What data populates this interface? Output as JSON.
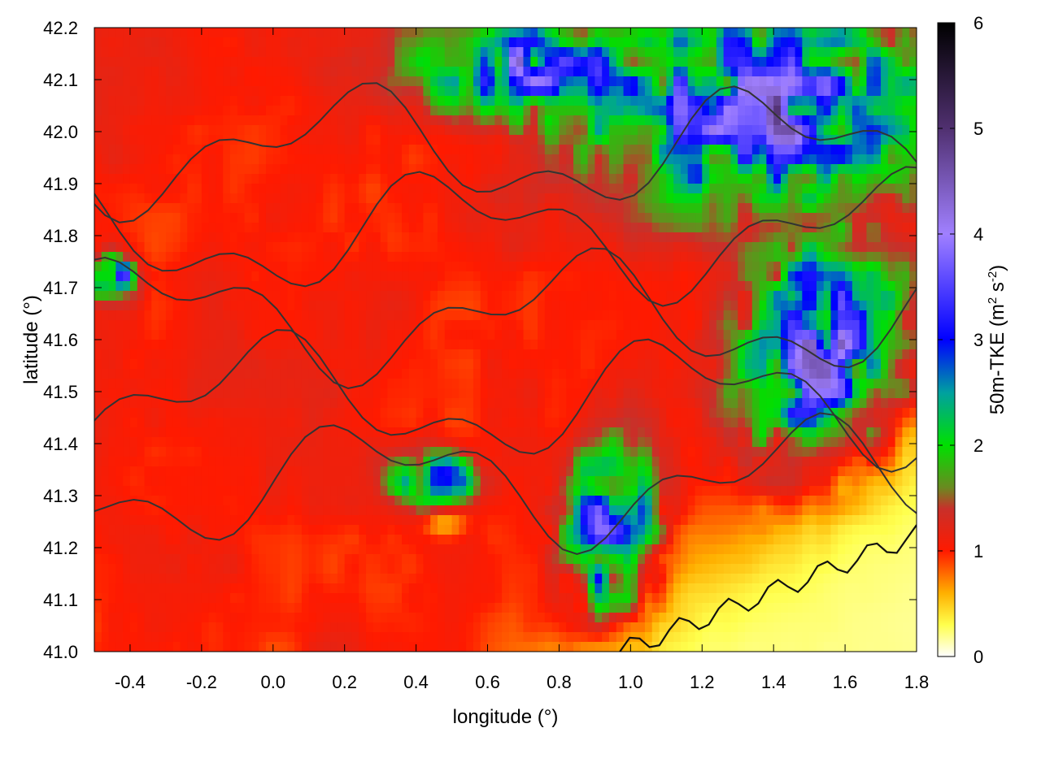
{
  "chart_data": {
    "type": "heatmap",
    "title": "",
    "xlabel": "longitude (°)",
    "ylabel": "latitude (°)",
    "colorbar_label": "50m-TKE (m² s⁻²)",
    "colorbar_label_parts": {
      "pre": "50m-TKE (m",
      "sup1": "2",
      "mid": " s",
      "sup2": "-2",
      "post": ")"
    },
    "xlim": [
      -0.5,
      1.8
    ],
    "ylim": [
      41.0,
      42.2
    ],
    "zlim": [
      0,
      6
    ],
    "x_ticks": [
      "-0.4",
      "-0.2",
      "0.0",
      "0.2",
      "0.4",
      "0.6",
      "0.8",
      "1.0",
      "1.2",
      "1.4",
      "1.6",
      "1.8"
    ],
    "y_ticks": [
      "41.0",
      "41.1",
      "41.2",
      "41.3",
      "41.4",
      "41.5",
      "41.6",
      "41.7",
      "41.8",
      "41.9",
      "42.0",
      "42.1",
      "42.2"
    ],
    "colorbar_ticks": [
      "0",
      "1",
      "2",
      "3",
      "4",
      "5",
      "6"
    ],
    "colormap": [
      {
        "v": 0.0,
        "c": "#ffffff"
      },
      {
        "v": 0.3,
        "c": "#ffff4d"
      },
      {
        "v": 0.6,
        "c": "#ffb000"
      },
      {
        "v": 1.0,
        "c": "#ff1a00"
      },
      {
        "v": 1.4,
        "c": "#c8302a"
      },
      {
        "v": 1.6,
        "c": "#6a8a20"
      },
      {
        "v": 2.0,
        "c": "#00e000"
      },
      {
        "v": 2.5,
        "c": "#00a0a0"
      },
      {
        "v": 3.0,
        "c": "#0000ff"
      },
      {
        "v": 4.0,
        "c": "#a080ff"
      },
      {
        "v": 5.0,
        "c": "#503070"
      },
      {
        "v": 6.0,
        "c": "#000000"
      }
    ],
    "contour_color": "#333333",
    "grid": false
  }
}
